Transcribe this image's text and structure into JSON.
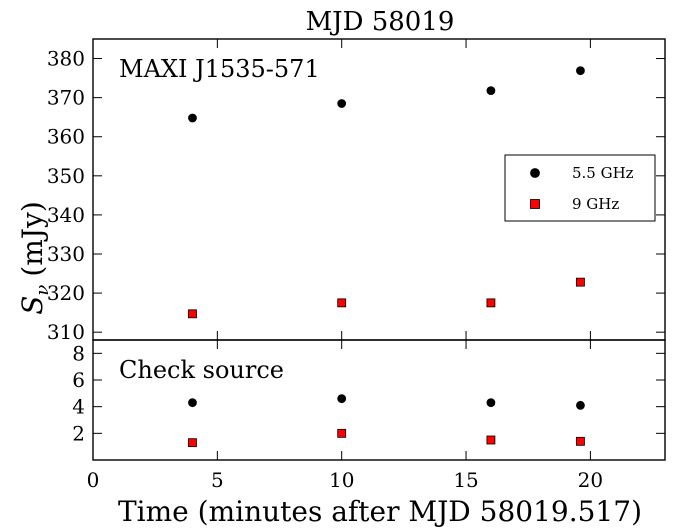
{
  "chart_data": {
    "type": "scatter",
    "title": "MJD 58019",
    "xlabel": "Time (minutes after MJD 58019.517)",
    "ylabel": "S",
    "ylabel_subscript": "ν",
    "ylabel_unit": "(mJy)",
    "xlim": [
      0,
      23
    ],
    "x_ticks": [
      0,
      5,
      10,
      15,
      20
    ],
    "legend_position": "right",
    "legend": [
      {
        "label": "5.5 GHz",
        "marker": "circle",
        "color": "#000000"
      },
      {
        "label": "9 GHz",
        "marker": "square",
        "color": "#ff0000"
      }
    ],
    "panels": [
      {
        "label": "MAXI J1535-571",
        "ylim": [
          308,
          385
        ],
        "y_ticks": [
          310,
          320,
          330,
          340,
          350,
          360,
          370,
          380
        ],
        "series": [
          {
            "name": "5.5 GHz",
            "x": [
              4,
              10,
              16,
              19.6
            ],
            "y": [
              364.8,
              368.5,
              371.8,
              376.9
            ]
          },
          {
            "name": "9 GHz",
            "x": [
              4,
              10,
              16,
              19.6
            ],
            "y": [
              314.7,
              317.5,
              317.5,
              322.8
            ]
          }
        ]
      },
      {
        "label": "Check source",
        "ylim": [
          0,
          9
        ],
        "y_ticks": [
          2,
          4,
          6,
          8
        ],
        "series": [
          {
            "name": "5.5 GHz",
            "x": [
              4,
              10,
              16,
              19.6
            ],
            "y": [
              4.3,
              4.6,
              4.3,
              4.1
            ]
          },
          {
            "name": "9 GHz",
            "x": [
              4,
              10,
              16,
              19.6
            ],
            "y": [
              1.3,
              2.0,
              1.5,
              1.4
            ]
          }
        ]
      }
    ]
  }
}
